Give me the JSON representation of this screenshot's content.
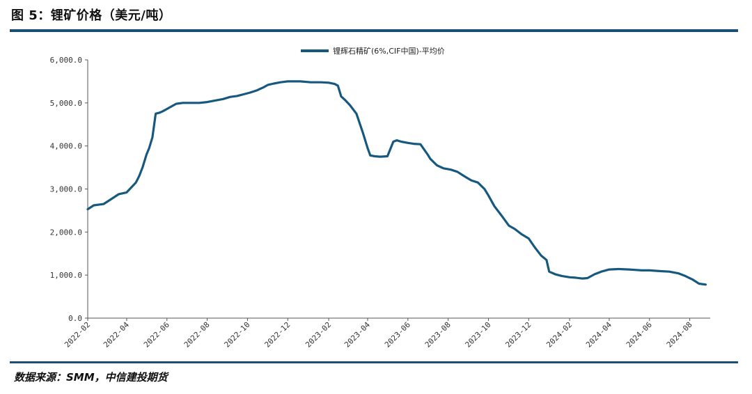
{
  "header": {
    "title": "图 5：锂矿价格（美元/吨）"
  },
  "footer": {
    "source": "数据来源：SMM，中信建投期货"
  },
  "colors": {
    "accent": "#1a4e74",
    "series": "#17587f"
  },
  "chart_data": {
    "type": "line",
    "title": "",
    "xlabel": "",
    "ylabel": "",
    "ylim": [
      0,
      6000
    ],
    "yticks": [
      0,
      1000,
      2000,
      3000,
      4000,
      5000,
      6000
    ],
    "ytick_labels": [
      "0.0",
      "1,000.0",
      "2,000.0",
      "3,000.0",
      "4,000.0",
      "5,000.0",
      "6,000.0"
    ],
    "xlim": [
      "2022-02-01",
      "2024-09-01"
    ],
    "xtick_labels": [
      "2022-02",
      "2022-04",
      "2022-06",
      "2022-08",
      "2022-10",
      "2022-12",
      "2023-02",
      "2023-04",
      "2023-06",
      "2023-08",
      "2023-10",
      "2023-12",
      "2024-02",
      "2024-04",
      "2024-06",
      "2024-08"
    ],
    "grid": false,
    "legend": "top-center",
    "series": [
      {
        "name": "锂辉石精矿(6%,CIF中国)-平均价",
        "x": [
          "2022-02-01",
          "2022-02-10",
          "2022-02-25",
          "2022-03-10",
          "2022-03-20",
          "2022-04-01",
          "2022-04-15",
          "2022-04-20",
          "2022-04-25",
          "2022-05-01",
          "2022-05-05",
          "2022-05-10",
          "2022-05-15",
          "2022-05-20",
          "2022-05-25",
          "2022-06-01",
          "2022-06-15",
          "2022-06-25",
          "2022-07-05",
          "2022-07-20",
          "2022-08-01",
          "2022-08-15",
          "2022-08-25",
          "2022-09-05",
          "2022-09-15",
          "2022-09-25",
          "2022-10-05",
          "2022-10-15",
          "2022-10-25",
          "2022-11-01",
          "2022-11-10",
          "2022-11-20",
          "2022-12-01",
          "2022-12-20",
          "2023-01-05",
          "2023-01-20",
          "2023-02-01",
          "2023-02-10",
          "2023-02-15",
          "2023-02-20",
          "2023-02-25",
          "2023-03-05",
          "2023-03-15",
          "2023-03-25",
          "2023-04-01",
          "2023-04-05",
          "2023-04-12",
          "2023-04-20",
          "2023-05-01",
          "2023-05-10",
          "2023-05-15",
          "2023-05-22",
          "2023-06-01",
          "2023-06-10",
          "2023-06-20",
          "2023-07-01",
          "2023-07-05",
          "2023-07-15",
          "2023-07-25",
          "2023-08-05",
          "2023-08-15",
          "2023-08-25",
          "2023-09-05",
          "2023-09-15",
          "2023-09-25",
          "2023-10-01",
          "2023-10-10",
          "2023-10-20",
          "2023-11-01",
          "2023-11-10",
          "2023-11-20",
          "2023-12-01",
          "2023-12-10",
          "2023-12-20",
          "2023-12-28",
          "2024-01-01",
          "2024-01-10",
          "2024-01-20",
          "2024-02-01",
          "2024-02-10",
          "2024-02-20",
          "2024-02-28",
          "2024-03-10",
          "2024-03-20",
          "2024-04-01",
          "2024-04-15",
          "2024-05-01",
          "2024-05-10",
          "2024-05-20",
          "2024-06-01",
          "2024-06-10",
          "2024-06-20",
          "2024-07-01",
          "2024-07-15",
          "2024-07-25",
          "2024-08-05",
          "2024-08-15",
          "2024-08-25"
        ],
        "values": [
          2530,
          2620,
          2650,
          2780,
          2880,
          2920,
          3150,
          3300,
          3500,
          3800,
          3950,
          4200,
          4750,
          4770,
          4800,
          4860,
          4980,
          5000,
          5000,
          5000,
          5020,
          5060,
          5090,
          5140,
          5160,
          5200,
          5240,
          5290,
          5360,
          5420,
          5450,
          5480,
          5500,
          5500,
          5480,
          5480,
          5470,
          5440,
          5400,
          5150,
          5080,
          4950,
          4750,
          4300,
          3950,
          3780,
          3760,
          3750,
          3760,
          4100,
          4130,
          4100,
          4070,
          4050,
          4040,
          3800,
          3700,
          3550,
          3480,
          3450,
          3400,
          3300,
          3200,
          3150,
          3000,
          2850,
          2600,
          2400,
          2150,
          2070,
          1950,
          1850,
          1650,
          1450,
          1350,
          1080,
          1020,
          980,
          950,
          940,
          920,
          930,
          1020,
          1080,
          1130,
          1140,
          1130,
          1120,
          1110,
          1110,
          1100,
          1090,
          1080,
          1040,
          980,
          900,
          800,
          780
        ]
      }
    ]
  }
}
